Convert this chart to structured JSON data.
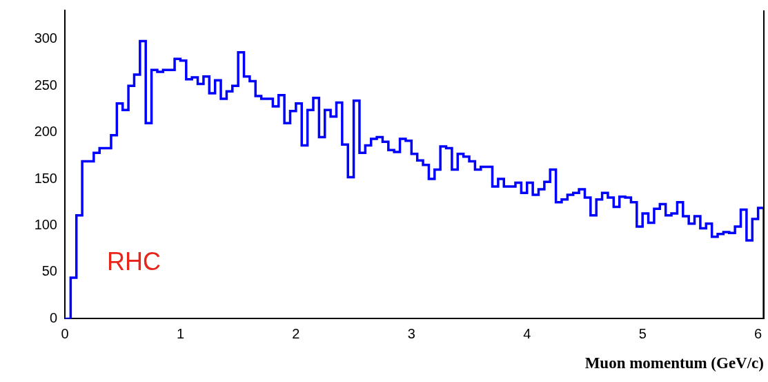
{
  "chart_data": {
    "type": "histogram",
    "xlabel": "Muon momentum (GeV/c)",
    "bins": [
      0,
      0.05,
      0.1,
      0.15,
      0.2,
      0.25,
      0.3,
      0.35,
      0.4,
      0.45,
      0.5,
      0.55,
      0.6,
      0.65,
      0.7,
      0.75,
      0.8,
      0.85,
      0.9,
      0.95,
      1,
      1.05,
      1.1,
      1.15,
      1.2,
      1.25,
      1.3,
      1.35,
      1.4,
      1.45,
      1.5,
      1.55,
      1.6,
      1.65,
      1.7,
      1.75,
      1.8,
      1.85,
      1.9,
      1.95,
      2,
      2.05,
      2.1,
      2.15,
      2.2,
      2.25,
      2.3,
      2.35,
      2.4,
      2.45,
      2.5,
      2.55,
      2.6,
      2.65,
      2.7,
      2.75,
      2.8,
      2.85,
      2.9,
      2.95,
      3,
      3.05,
      3.1,
      3.15,
      3.2,
      3.25,
      3.3,
      3.35,
      3.4,
      3.45,
      3.5,
      3.55,
      3.6,
      3.65,
      3.7,
      3.75,
      3.8,
      3.85,
      3.9,
      3.95,
      4,
      4.05,
      4.1,
      4.15,
      4.2,
      4.25,
      4.3,
      4.35,
      4.4,
      4.45,
      4.5,
      4.55,
      4.6,
      4.65,
      4.7,
      4.75,
      4.8,
      4.85,
      4.9,
      4.95,
      5,
      5.05,
      5.1,
      5.15,
      5.2,
      5.25,
      5.3,
      5.35,
      5.4,
      5.45,
      5.5,
      5.55,
      5.6,
      5.65,
      5.7,
      5.75,
      5.8,
      5.85,
      5.9,
      5.95,
      6,
      6.05
    ],
    "values": [
      0,
      44,
      111,
      169,
      169,
      178,
      183,
      183,
      197,
      231,
      224,
      250,
      262,
      298,
      210,
      267,
      265,
      267,
      267,
      279,
      277,
      257,
      259,
      252,
      260,
      242,
      256,
      236,
      244,
      250,
      286,
      260,
      255,
      239,
      236,
      236,
      228,
      240,
      210,
      223,
      231,
      186,
      224,
      237,
      195,
      224,
      217,
      232,
      187,
      152,
      234,
      178,
      186,
      193,
      195,
      190,
      181,
      179,
      193,
      191,
      177,
      170,
      165,
      150,
      160,
      185,
      183,
      160,
      177,
      174,
      169,
      160,
      163,
      163,
      142,
      150,
      142,
      142,
      146,
      135,
      146,
      133,
      139,
      147,
      160,
      125,
      128,
      133,
      135,
      139,
      130,
      111,
      128,
      135,
      130,
      120,
      131,
      130,
      125,
      99,
      113,
      103,
      118,
      123,
      111,
      113,
      125,
      110,
      102,
      110,
      97,
      102,
      88,
      91,
      93,
      92,
      99,
      117,
      84,
      107,
      119
    ],
    "color": "#0000ff",
    "xlim": [
      0,
      6.05
    ],
    "xticks": [
      0,
      1,
      2,
      3,
      4,
      5,
      6
    ],
    "ylim": [
      0,
      331
    ],
    "yticks": [
      0,
      50,
      100,
      150,
      200,
      250,
      300
    ],
    "annotations": [
      "RHC"
    ]
  }
}
